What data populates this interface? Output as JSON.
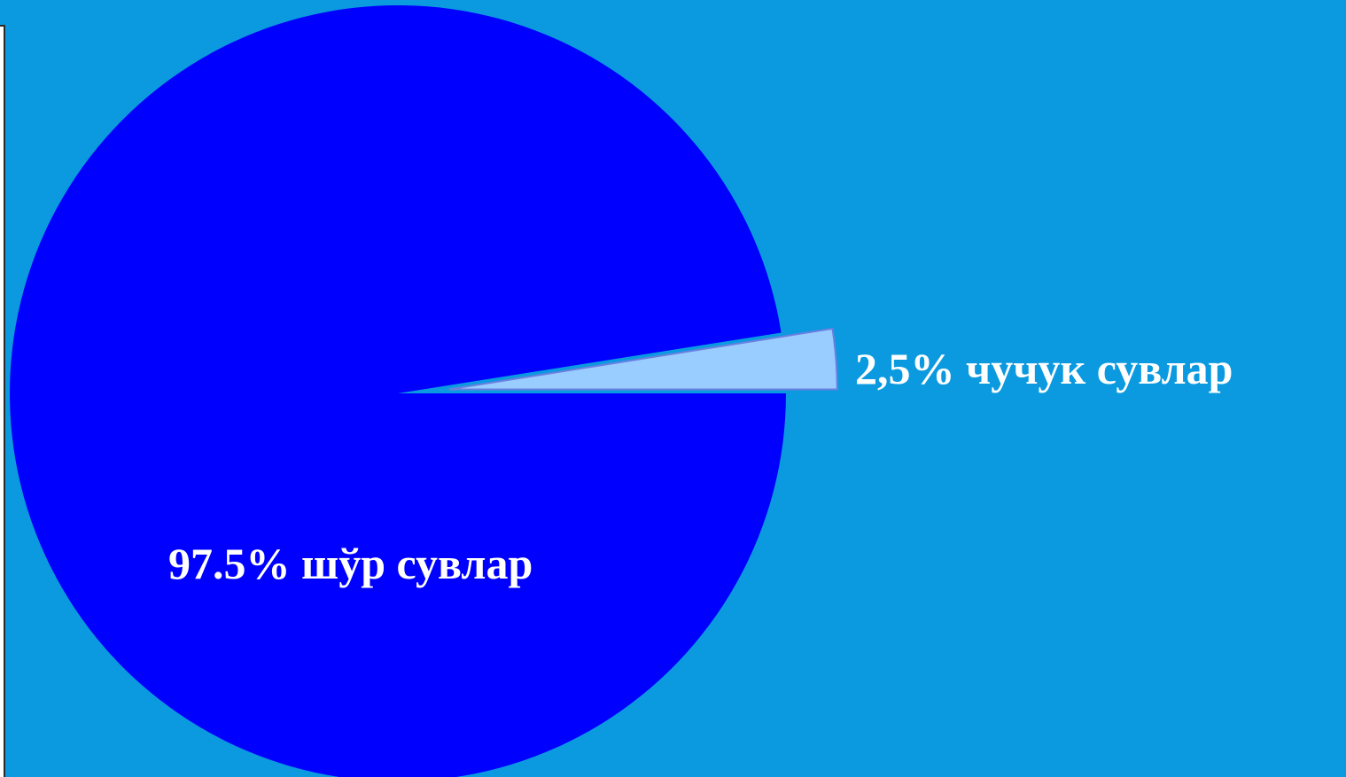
{
  "chart_data": {
    "type": "pie",
    "title": "",
    "slices": [
      {
        "label": "97.5% шўр сувлар",
        "value": 97.5,
        "color": "#0000ff",
        "exploded": false
      },
      {
        "label": "2,5% чучук сувлар",
        "value": 2.5,
        "color": "#99ccff",
        "exploded": true
      }
    ],
    "start_angle_deg": 0,
    "direction": "counterclockwise"
  },
  "colors": {
    "background": "#0b9ae0",
    "label_text": "#ffffff"
  }
}
